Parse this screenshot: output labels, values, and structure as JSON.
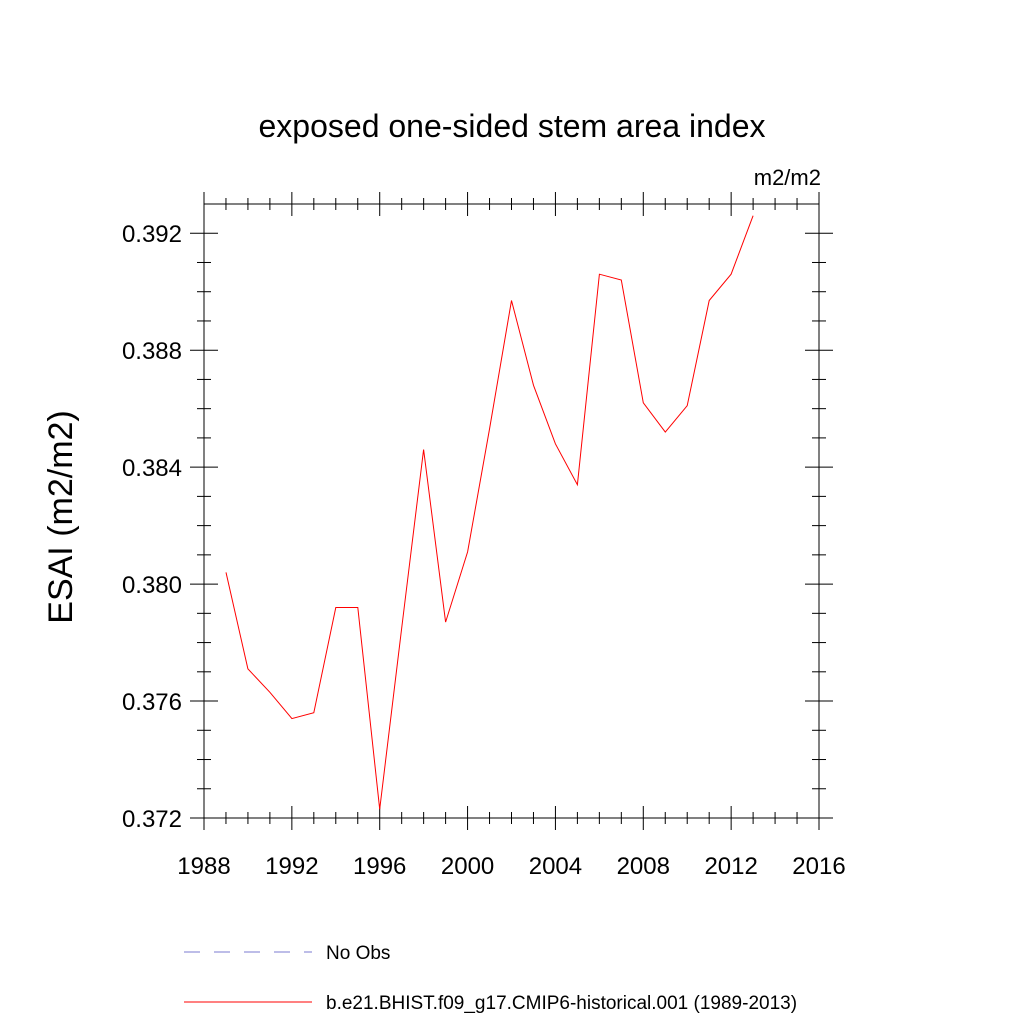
{
  "chart_data": {
    "type": "line",
    "title": "exposed one-sided stem area index",
    "units_label": "m2/m2",
    "xlabel": "",
    "ylabel": "ESAI  (m2/m2)",
    "xlim": [
      1988,
      2016
    ],
    "ylim": [
      0.372,
      0.393
    ],
    "x_ticks": [
      1988,
      1992,
      1996,
      2000,
      2004,
      2008,
      2012,
      2016
    ],
    "y_ticks": [
      0.372,
      0.376,
      0.38,
      0.384,
      0.388,
      0.392
    ],
    "x_tick_labels": [
      "1988",
      "1992",
      "1996",
      "2000",
      "2004",
      "2008",
      "2012",
      "2016"
    ],
    "y_tick_labels": [
      "0.372",
      "0.376",
      "0.380",
      "0.384",
      "0.388",
      "0.392"
    ],
    "grid": false,
    "legend_position": "bottom",
    "series": [
      {
        "name": "No Obs",
        "color": "#7b7bd0",
        "dash": "dashed",
        "x": [],
        "y": []
      },
      {
        "name": "b.e21.BHIST.f09_g17.CMIP6-historical.001 (1989-2013)",
        "color": "#ff0000",
        "dash": "solid",
        "x": [
          1989,
          1990,
          1991,
          1992,
          1993,
          1994,
          1995,
          1996,
          1997,
          1998,
          1999,
          2000,
          2001,
          2002,
          2003,
          2004,
          2005,
          2006,
          2007,
          2008,
          2009,
          2010,
          2011,
          2012,
          2013
        ],
        "y": [
          0.3804,
          0.3771,
          0.3763,
          0.3754,
          0.3756,
          0.3792,
          0.3792,
          0.3723,
          0.3785,
          0.3846,
          0.3787,
          0.3811,
          0.3853,
          0.3897,
          0.3868,
          0.3848,
          0.3834,
          0.3906,
          0.3904,
          0.3862,
          0.3852,
          0.3861,
          0.3897,
          0.3906,
          0.3926
        ]
      }
    ]
  }
}
